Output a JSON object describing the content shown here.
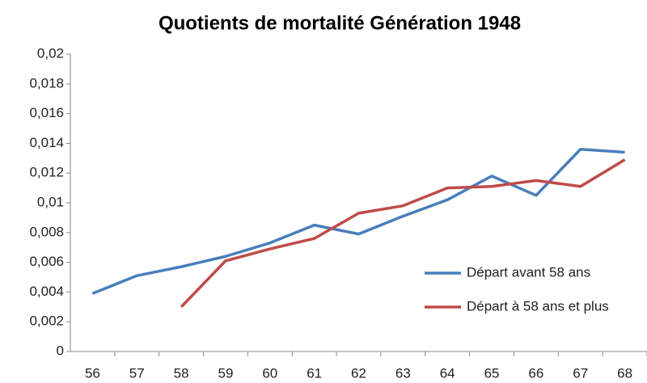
{
  "chart_data": {
    "type": "line",
    "title": "Quotients de mortalité  Génération  1948",
    "categories": [
      "56",
      "57",
      "58",
      "59",
      "60",
      "61",
      "62",
      "63",
      "64",
      "65",
      "66",
      "67",
      "68"
    ],
    "series": [
      {
        "name": "Départ avant 58 ans",
        "color": "#4a7ebb",
        "values": [
          0.0039,
          0.0051,
          0.0057,
          0.0064,
          0.0073,
          0.0085,
          0.0079,
          0.0091,
          0.0102,
          0.0118,
          0.0105,
          0.0136,
          0.0134
        ]
      },
      {
        "name": "Départ à 58 ans et plus",
        "color": "#be4b48",
        "values": [
          null,
          null,
          0.003,
          0.0061,
          0.0069,
          0.0076,
          0.0093,
          0.0098,
          0.011,
          0.0111,
          0.0115,
          0.0111,
          0.0129
        ]
      }
    ],
    "ylim": [
      0,
      0.02
    ],
    "yticks": [
      0,
      {
        "value": 0.002,
        "label": "0,002"
      },
      {
        "value": 0.004,
        "label": "0,004"
      },
      {
        "value": 0.006,
        "label": "0,006"
      },
      {
        "value": 0.008,
        "label": "0,008"
      },
      {
        "value": 0.01,
        "label": "0,01"
      },
      {
        "value": 0.012,
        "label": "0,012"
      },
      {
        "value": 0.014,
        "label": "0,014"
      },
      {
        "value": 0.016,
        "label": "0,016"
      },
      {
        "value": 0.018,
        "label": "0,018"
      },
      {
        "value": 0.02,
        "label": "0,02"
      }
    ],
    "grid": false,
    "legend": "lower right"
  }
}
